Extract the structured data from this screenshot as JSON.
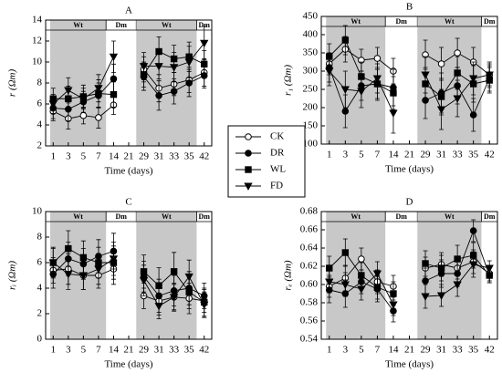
{
  "chart_data": [
    {
      "type": "line",
      "title": "A",
      "x_label": "Time (days)",
      "y_label": "r (Ωm)",
      "categories": [
        "1",
        "3",
        "5",
        "7",
        "14",
        "21",
        "29",
        "31",
        "33",
        "35",
        "42"
      ],
      "ylim": [
        2,
        14
      ],
      "yticks": [
        2,
        4,
        6,
        8,
        10,
        12,
        14
      ],
      "periods": [
        {
          "label": "Wt",
          "span": 4,
          "shaded": true
        },
        {
          "label": "Dm",
          "span": 2,
          "shaded": false
        },
        {
          "label": "Wt",
          "span": 4,
          "shaded": true
        },
        {
          "label": "Dm",
          "span": 1,
          "shaded": false
        }
      ],
      "series": [
        {
          "name": "CK",
          "marker": "open-circle",
          "color": "#000000",
          "values": [
            5.3,
            4.6,
            4.9,
            4.7,
            5.9,
            null,
            9.3,
            7.5,
            7.9,
            8.3,
            9.0
          ],
          "errors": [
            0.9,
            1.0,
            0.8,
            1.0,
            0.9,
            null,
            1.2,
            1.3,
            1.1,
            1.2,
            1.3
          ]
        },
        {
          "name": "DR",
          "marker": "filled-circle",
          "color": "#000000",
          "values": [
            5.6,
            5.5,
            6.2,
            6.8,
            8.4,
            null,
            8.6,
            6.8,
            7.2,
            8.0,
            8.7
          ],
          "errors": [
            1.0,
            1.1,
            1.0,
            1.2,
            1.4,
            null,
            1.3,
            1.4,
            1.2,
            1.3,
            1.2
          ]
        },
        {
          "name": "WL",
          "marker": "square",
          "color": "#000000",
          "values": [
            6.5,
            6.5,
            6.7,
            7.0,
            6.9,
            null,
            8.8,
            11.0,
            10.3,
            10.5,
            9.8
          ],
          "errors": [
            1.0,
            1.2,
            1.1,
            1.3,
            1.2,
            null,
            1.2,
            1.4,
            1.3,
            1.4,
            1.3
          ]
        },
        {
          "name": "FD",
          "marker": "triangle-down",
          "color": "#000000",
          "values": [
            6.0,
            7.3,
            6.5,
            7.5,
            10.5,
            null,
            9.6,
            9.6,
            9.5,
            10.0,
            11.8
          ],
          "errors": [
            0.9,
            1.2,
            1.0,
            1.3,
            1.5,
            null,
            1.3,
            1.2,
            1.4,
            1.5,
            1.6
          ]
        }
      ]
    },
    {
      "type": "line",
      "title": "B",
      "x_label": "Time (days)",
      "y_label": "r₁ (Ωm)",
      "categories": [
        "1",
        "3",
        "5",
        "7",
        "14",
        "21",
        "29",
        "31",
        "33",
        "35",
        "42"
      ],
      "ylim": [
        100,
        450
      ],
      "yticks": [
        100,
        150,
        200,
        250,
        300,
        350,
        400,
        450
      ],
      "periods": [
        {
          "label": "Wt",
          "span": 4,
          "shaded": true
        },
        {
          "label": "Dm",
          "span": 2,
          "shaded": false
        },
        {
          "label": "Wt",
          "span": 4,
          "shaded": true
        },
        {
          "label": "Dm",
          "span": 1,
          "shaded": false
        }
      ],
      "series": [
        {
          "marker": "open-circle",
          "color": "#000000",
          "values": [
            320,
            360,
            330,
            335,
            300,
            null,
            345,
            320,
            350,
            325,
            290
          ],
          "errors": [
            30,
            35,
            30,
            30,
            35,
            null,
            40,
            45,
            40,
            40,
            30
          ]
        },
        {
          "marker": "filled-circle",
          "color": "#000000",
          "values": [
            310,
            190,
            260,
            265,
            255,
            null,
            220,
            240,
            260,
            180,
            280
          ],
          "errors": [
            40,
            45,
            40,
            45,
            50,
            null,
            50,
            55,
            50,
            45,
            35
          ]
        },
        {
          "marker": "square",
          "color": "#000000",
          "values": [
            340,
            385,
            285,
            265,
            240,
            null,
            265,
            230,
            295,
            265,
            275
          ],
          "errors": [
            35,
            40,
            40,
            40,
            45,
            null,
            45,
            50,
            45,
            50,
            35
          ]
        },
        {
          "marker": "triangle-down",
          "color": "#000000",
          "values": [
            300,
            250,
            245,
            280,
            185,
            null,
            290,
            195,
            225,
            280,
            290
          ],
          "errors": [
            40,
            50,
            45,
            40,
            55,
            null,
            50,
            55,
            50,
            45,
            35
          ]
        }
      ]
    },
    {
      "type": "line",
      "title": "C",
      "x_label": "Time (days)",
      "y_label": "rᵢ (Ωm)",
      "categories": [
        "1",
        "3",
        "5",
        "7",
        "14",
        "21",
        "29",
        "31",
        "33",
        "35",
        "42"
      ],
      "ylim": [
        0,
        10
      ],
      "yticks": [
        0,
        2,
        4,
        6,
        8,
        10
      ],
      "periods": [
        {
          "label": "Wt",
          "span": 4,
          "shaded": true
        },
        {
          "label": "Dm",
          "span": 2,
          "shaded": false
        },
        {
          "label": "Wt",
          "span": 4,
          "shaded": true
        },
        {
          "label": "Dm",
          "span": 1,
          "shaded": false
        }
      ],
      "series": [
        {
          "marker": "open-circle",
          "color": "#000000",
          "values": [
            5.4,
            5.5,
            5.0,
            5.0,
            5.5,
            null,
            3.4,
            3.0,
            3.3,
            3.2,
            3.0
          ],
          "errors": [
            1.0,
            1.2,
            1.1,
            1.0,
            1.2,
            null,
            1.0,
            1.1,
            1.0,
            1.2,
            0.9
          ]
        },
        {
          "marker": "filled-circle",
          "color": "#000000",
          "values": [
            5.1,
            6.3,
            5.9,
            6.5,
            6.9,
            null,
            4.9,
            3.4,
            3.8,
            4.0,
            3.4
          ],
          "errors": [
            1.1,
            1.3,
            1.2,
            1.3,
            1.4,
            null,
            1.2,
            1.3,
            1.2,
            1.3,
            1.0
          ]
        },
        {
          "marker": "square",
          "color": "#000000",
          "values": [
            6.0,
            7.1,
            6.4,
            6.0,
            6.0,
            null,
            5.3,
            4.2,
            5.3,
            3.7,
            2.9
          ],
          "errors": [
            1.2,
            1.4,
            1.3,
            1.2,
            1.3,
            null,
            1.3,
            1.4,
            1.5,
            1.3,
            1.1
          ]
        },
        {
          "marker": "triangle-down",
          "color": "#000000",
          "values": [
            6.0,
            5.1,
            5.0,
            5.5,
            6.3,
            null,
            4.6,
            2.6,
            3.3,
            4.9,
            2.7
          ],
          "errors": [
            1.1,
            1.2,
            1.1,
            1.2,
            1.3,
            null,
            1.2,
            1.0,
            1.1,
            1.3,
            1.0
          ]
        }
      ]
    },
    {
      "type": "line",
      "title": "D",
      "x_label": "Time (days)",
      "y_label": "rₑ (Ωm)",
      "categories": [
        "1",
        "3",
        "5",
        "7",
        "14",
        "21",
        "29",
        "31",
        "33",
        "35",
        "42"
      ],
      "ylim": [
        0.54,
        0.68
      ],
      "yticks": [
        0.54,
        0.56,
        0.58,
        {
          "value": 0.6,
          "label": "0.60"
        },
        0.62,
        0.64,
        0.66,
        0.68
      ],
      "periods": [
        {
          "label": "Wt",
          "span": 4,
          "shaded": true
        },
        {
          "label": "Dm",
          "span": 2,
          "shaded": false
        },
        {
          "label": "Wt",
          "span": 4,
          "shaded": true
        },
        {
          "label": "Dm",
          "span": 1,
          "shaded": false
        }
      ],
      "series": [
        {
          "marker": "open-circle",
          "color": "#000000",
          "values": [
            0.598,
            0.607,
            0.628,
            0.603,
            0.598,
            null,
            0.618,
            0.622,
            0.618,
            0.625,
            0.612
          ],
          "errors": [
            0.012,
            0.014,
            0.012,
            0.013,
            0.012,
            null,
            0.012,
            0.013,
            0.012,
            0.013,
            0.008
          ]
        },
        {
          "marker": "filled-circle",
          "color": "#000000",
          "values": [
            0.594,
            0.59,
            0.603,
            0.595,
            0.571,
            null,
            0.604,
            0.612,
            0.612,
            0.659,
            0.61
          ],
          "errors": [
            0.014,
            0.015,
            0.013,
            0.014,
            0.012,
            null,
            0.014,
            0.015,
            0.014,
            0.012,
            0.008
          ]
        },
        {
          "marker": "square",
          "color": "#000000",
          "values": [
            0.618,
            0.635,
            0.61,
            0.597,
            0.59,
            null,
            0.623,
            0.618,
            0.628,
            0.632,
            0.61
          ],
          "errors": [
            0.013,
            0.015,
            0.014,
            0.013,
            0.013,
            null,
            0.014,
            0.014,
            0.015,
            0.014,
            0.008
          ]
        },
        {
          "marker": "triangle-down",
          "color": "#000000",
          "values": [
            0.603,
            0.6,
            0.595,
            0.612,
            0.578,
            null,
            0.587,
            0.588,
            0.6,
            0.622,
            0.618
          ],
          "errors": [
            0.012,
            0.013,
            0.012,
            0.013,
            0.012,
            null,
            0.013,
            0.012,
            0.013,
            0.014,
            0.008
          ]
        }
      ]
    }
  ]
}
